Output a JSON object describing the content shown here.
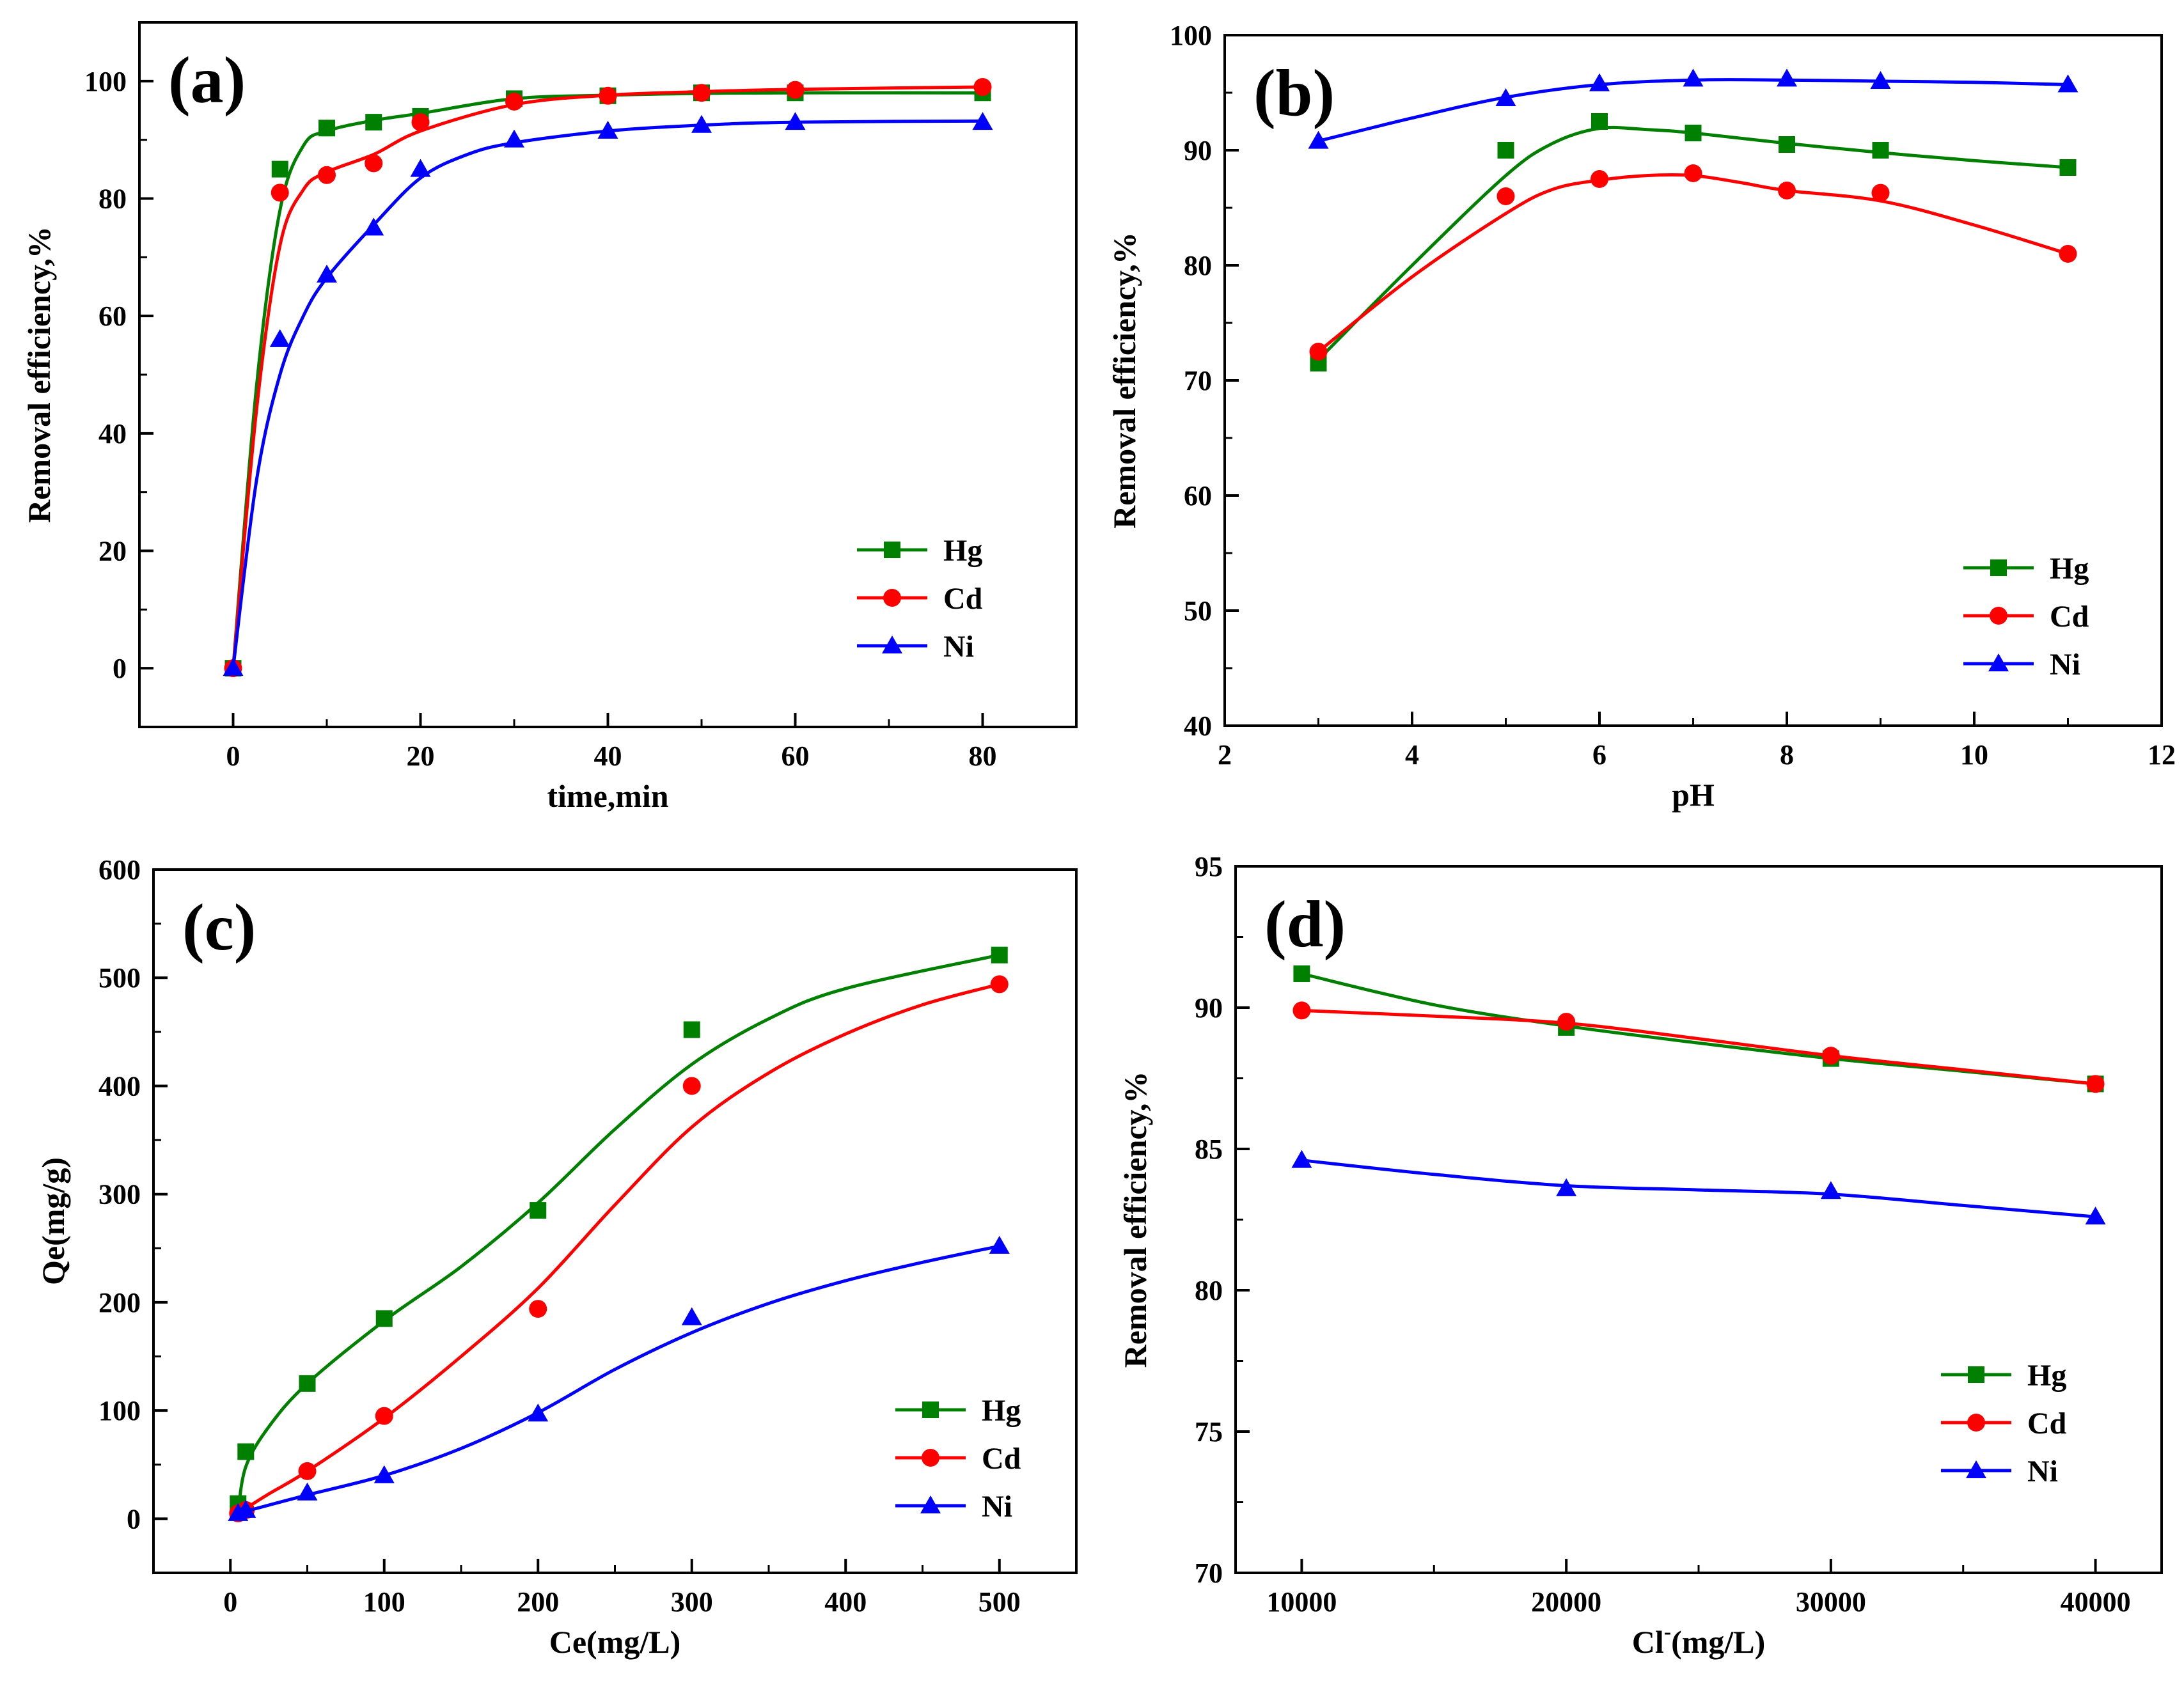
{
  "figure": {
    "panels": [
      {
        "id": "a",
        "label": "(a)"
      },
      {
        "id": "b",
        "label": "(b)"
      },
      {
        "id": "c",
        "label": "(c)"
      },
      {
        "id": "d",
        "label": "(d)"
      }
    ]
  },
  "series_colors": {
    "Hg": "#008000",
    "Cd": "#ff0000",
    "Ni": "#0000ff"
  },
  "chart_data": [
    {
      "panel": "(a)",
      "type": "line",
      "title": "",
      "xlabel": "time,min",
      "ylabel": "Removal efficiency,%",
      "xlim": [
        -10,
        90
      ],
      "ylim": [
        -10,
        110
      ],
      "xticks": [
        0,
        20,
        40,
        60,
        80
      ],
      "yticks": [
        0,
        20,
        40,
        60,
        80,
        100
      ],
      "legend": "bottom-right",
      "x": [
        0,
        5,
        10,
        15,
        20,
        30,
        40,
        50,
        60,
        80
      ],
      "series": [
        {
          "name": "Hg",
          "marker": "square",
          "values": [
            0,
            85,
            92,
            93,
            94,
            97,
            97.5,
            98,
            98,
            98
          ],
          "fit": [
            [
              0,
              0
            ],
            [
              2.5,
              48
            ],
            [
              5,
              78
            ],
            [
              7.5,
              89
            ],
            [
              10,
              91.5
            ],
            [
              15,
              93.3
            ],
            [
              20,
              94.5
            ],
            [
              30,
              97
            ],
            [
              40,
              97.6
            ],
            [
              50,
              97.9
            ],
            [
              60,
              98
            ],
            [
              80,
              98
            ]
          ]
        },
        {
          "name": "Cd",
          "marker": "circle",
          "values": [
            0,
            81,
            84,
            86,
            93,
            96.5,
            97.5,
            98,
            98.5,
            99
          ],
          "fit": [
            [
              0,
              0
            ],
            [
              2.5,
              44
            ],
            [
              5,
              72
            ],
            [
              7.5,
              81.5
            ],
            [
              10,
              84.5
            ],
            [
              15,
              87.5
            ],
            [
              20,
              91.5
            ],
            [
              30,
              96
            ],
            [
              40,
              97.6
            ],
            [
              50,
              98.2
            ],
            [
              60,
              98.6
            ],
            [
              80,
              99
            ]
          ]
        },
        {
          "name": "Ni",
          "marker": "triangle",
          "values": [
            0,
            56,
            67,
            75,
            85,
            90,
            91.5,
            92.5,
            93,
            93
          ],
          "fit": [
            [
              0,
              0
            ],
            [
              2.5,
              32
            ],
            [
              5,
              50
            ],
            [
              7.5,
              60
            ],
            [
              10,
              66.5
            ],
            [
              15,
              75.5
            ],
            [
              20,
              83.5
            ],
            [
              25,
              87.5
            ],
            [
              30,
              89.5
            ],
            [
              40,
              91.5
            ],
            [
              50,
              92.5
            ],
            [
              60,
              93
            ],
            [
              80,
              93.2
            ]
          ]
        }
      ]
    },
    {
      "panel": "(b)",
      "type": "line",
      "title": "",
      "xlabel": "pH",
      "ylabel": "Removal efficiency,%",
      "xlim": [
        2,
        12
      ],
      "ylim": [
        40,
        100
      ],
      "xticks": [
        2,
        4,
        6,
        8,
        10,
        12
      ],
      "yticks": [
        40,
        50,
        60,
        70,
        80,
        90,
        100
      ],
      "legend": "bottom-right",
      "x": [
        3,
        5,
        6,
        7,
        8,
        9,
        11
      ],
      "series": [
        {
          "name": "Hg",
          "marker": "square",
          "values": [
            71.5,
            90,
            92.5,
            91.5,
            90.5,
            90,
            88.5
          ],
          "fit": [
            [
              3,
              71.8
            ],
            [
              4,
              80
            ],
            [
              5,
              87.8
            ],
            [
              5.5,
              90.6
            ],
            [
              6,
              91.9
            ],
            [
              6.5,
              91.8
            ],
            [
              7,
              91.5
            ],
            [
              8,
              90.6
            ],
            [
              9,
              89.8
            ],
            [
              10,
              89.1
            ],
            [
              11,
              88.5
            ]
          ]
        },
        {
          "name": "Cd",
          "marker": "circle",
          "values": [
            72.5,
            86,
            87.5,
            88,
            86.5,
            86.3,
            81
          ],
          "fit": [
            [
              3,
              72.5
            ],
            [
              4,
              79
            ],
            [
              5,
              84.5
            ],
            [
              5.5,
              86.6
            ],
            [
              6,
              87.4
            ],
            [
              6.5,
              87.8
            ],
            [
              7,
              87.8
            ],
            [
              7.5,
              87.2
            ],
            [
              8,
              86.5
            ],
            [
              9,
              85.6
            ],
            [
              10,
              83.5
            ],
            [
              11,
              81
            ]
          ]
        },
        {
          "name": "Ni",
          "marker": "triangle",
          "values": [
            90.8,
            94.5,
            95.8,
            96.2,
            96.2,
            96,
            95.7
          ],
          "fit": [
            [
              3,
              90.8
            ],
            [
              4,
              92.8
            ],
            [
              5,
              94.6
            ],
            [
              6,
              95.7
            ],
            [
              7,
              96.1
            ],
            [
              8,
              96.1
            ],
            [
              9,
              96
            ],
            [
              10,
              95.9
            ],
            [
              11,
              95.7
            ]
          ]
        }
      ]
    },
    {
      "panel": "(c)",
      "type": "line",
      "title": "",
      "xlabel": "Ce(mg/L)",
      "ylabel": "Qe(mg/g)",
      "xlim": [
        -50,
        550
      ],
      "ylim": [
        -50,
        600
      ],
      "xticks": [
        0,
        100,
        200,
        300,
        400,
        500
      ],
      "yticks": [
        0,
        100,
        200,
        300,
        400,
        500,
        600
      ],
      "legend": "bottom-right",
      "x": [
        5,
        10,
        50,
        100,
        200,
        300,
        500
      ],
      "series": [
        {
          "name": "Hg",
          "marker": "square",
          "values": [
            14,
            62,
            125,
            185,
            285,
            452,
            521
          ],
          "fit": [
            [
              5,
              6
            ],
            [
              10,
              48
            ],
            [
              25,
              85
            ],
            [
              50,
              125
            ],
            [
              100,
              183
            ],
            [
              150,
              233
            ],
            [
              200,
              292
            ],
            [
              250,
              360
            ],
            [
              300,
              420
            ],
            [
              350,
              462
            ],
            [
              400,
              490
            ],
            [
              500,
              521
            ]
          ]
        },
        {
          "name": "Cd",
          "marker": "circle",
          "values": [
            5,
            8,
            44,
            95,
            194,
            400,
            494
          ],
          "fit": [
            [
              5,
              5
            ],
            [
              25,
              23
            ],
            [
              50,
              44
            ],
            [
              100,
              93
            ],
            [
              150,
              150
            ],
            [
              200,
              213
            ],
            [
              250,
              290
            ],
            [
              300,
              362
            ],
            [
              350,
              412
            ],
            [
              400,
              448
            ],
            [
              450,
              475
            ],
            [
              500,
              494
            ]
          ]
        },
        {
          "name": "Ni",
          "marker": "triangle",
          "values": [
            5,
            8,
            24,
            40,
            97,
            186,
            252
          ],
          "fit": [
            [
              5,
              5
            ],
            [
              50,
              22
            ],
            [
              100,
              40
            ],
            [
              150,
              65
            ],
            [
              200,
              98
            ],
            [
              250,
              138
            ],
            [
              300,
              172
            ],
            [
              350,
              199
            ],
            [
              400,
              220
            ],
            [
              450,
              237
            ],
            [
              500,
              252
            ]
          ]
        }
      ]
    },
    {
      "panel": "(d)",
      "type": "line",
      "title": "",
      "xlabel": "Cl",
      "xlabel_superscript": "-",
      "xlabel_suffix": "(mg/L)",
      "ylabel": "Removal efficiency,%",
      "xlim": [
        7500,
        42500
      ],
      "ylim": [
        70,
        95
      ],
      "xticks": [
        10000,
        20000,
        30000,
        40000
      ],
      "yticks": [
        70,
        75,
        80,
        85,
        90,
        95
      ],
      "legend": "bottom-right",
      "x": [
        10000,
        20000,
        30000,
        40000
      ],
      "series": [
        {
          "name": "Hg",
          "marker": "square",
          "values": [
            91.2,
            89.3,
            88.2,
            87.3
          ],
          "fit": [
            [
              10000,
              91.2
            ],
            [
              15000,
              90.1
            ],
            [
              20000,
              89.35
            ],
            [
              25000,
              88.75
            ],
            [
              30000,
              88.2
            ],
            [
              35000,
              87.75
            ],
            [
              40000,
              87.3
            ]
          ]
        },
        {
          "name": "Cd",
          "marker": "circle",
          "values": [
            89.9,
            89.5,
            88.3,
            87.3
          ],
          "fit": [
            [
              10000,
              89.9
            ],
            [
              15000,
              89.7
            ],
            [
              20000,
              89.45
            ],
            [
              25000,
              88.9
            ],
            [
              30000,
              88.3
            ],
            [
              35000,
              87.8
            ],
            [
              40000,
              87.3
            ]
          ]
        },
        {
          "name": "Ni",
          "marker": "triangle",
          "values": [
            84.6,
            83.6,
            83.5,
            82.6
          ],
          "fit": [
            [
              10000,
              84.6
            ],
            [
              15000,
              84.1
            ],
            [
              20000,
              83.7
            ],
            [
              25000,
              83.55
            ],
            [
              30000,
              83.4
            ],
            [
              35000,
              83.0
            ],
            [
              40000,
              82.6
            ]
          ]
        }
      ]
    }
  ]
}
